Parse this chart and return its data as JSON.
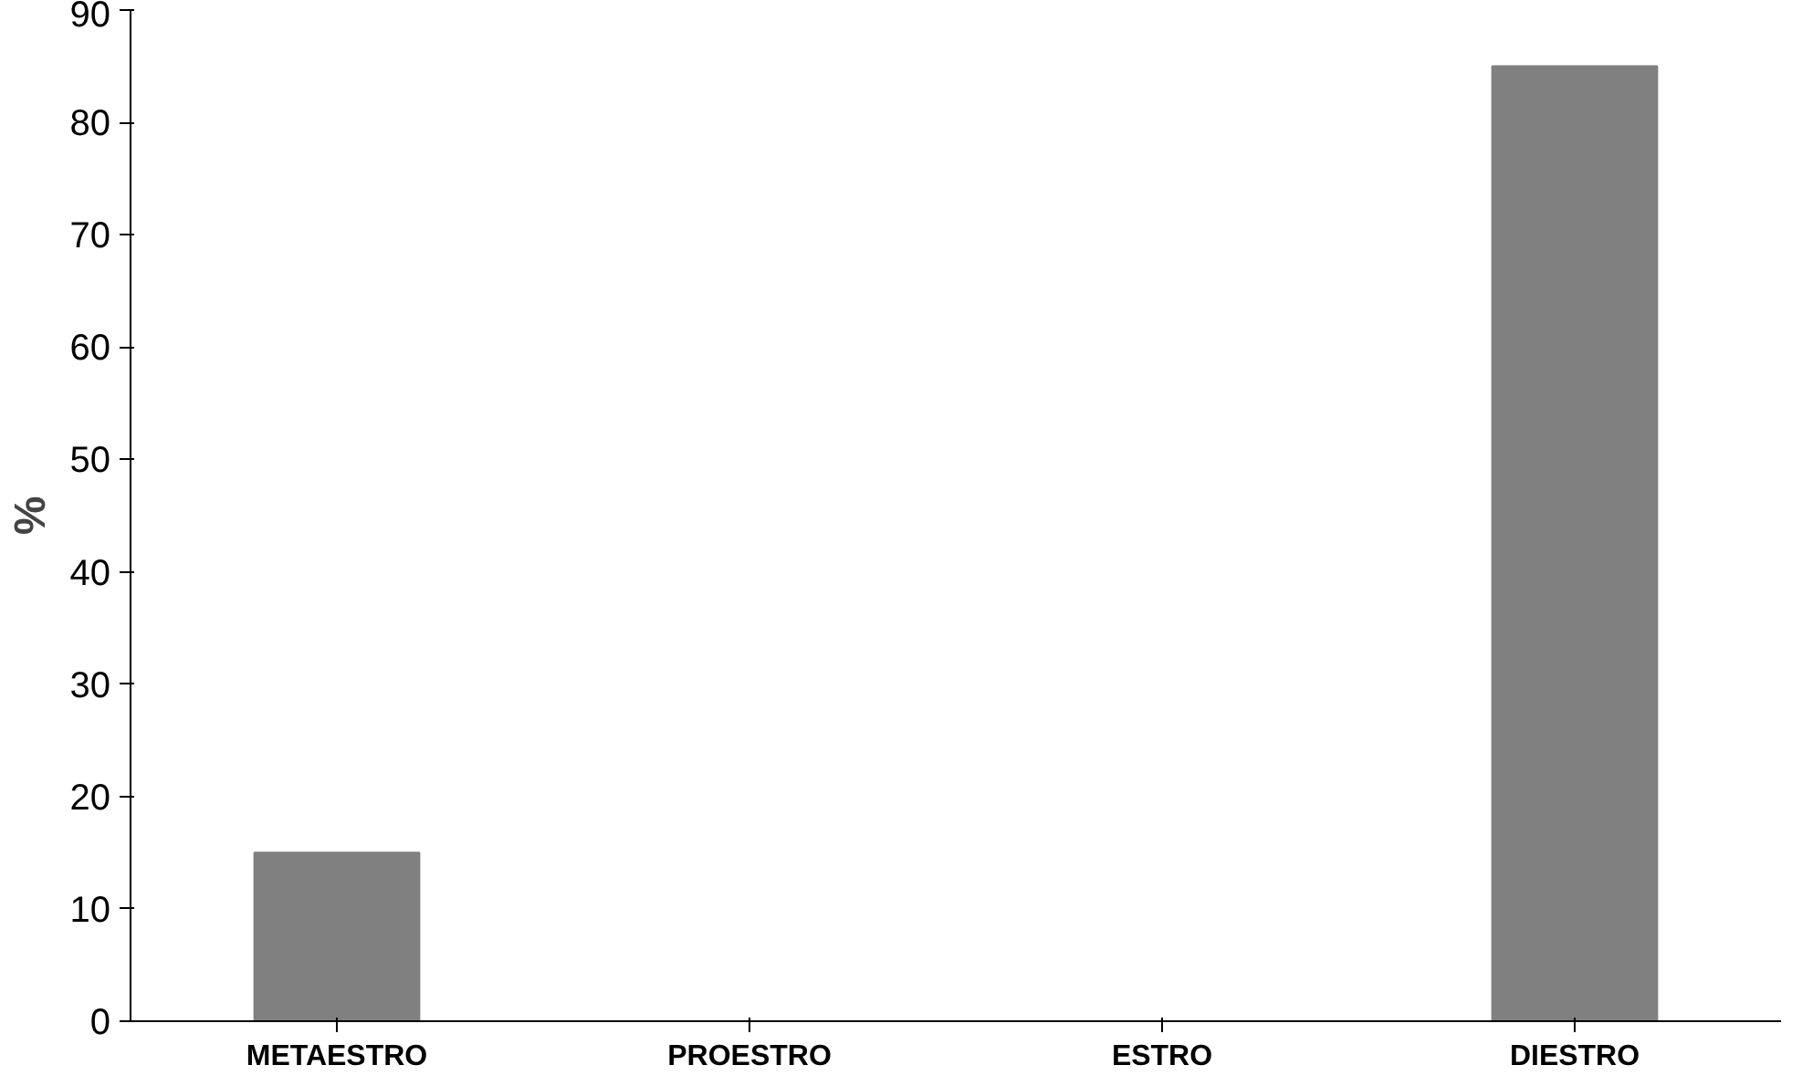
{
  "chart_data": {
    "type": "bar",
    "ylabel": "%",
    "categories": [
      "METAESTRO",
      "PROESTRO",
      "ESTRO",
      "DIESTRO"
    ],
    "values": [
      15,
      0,
      0,
      85
    ],
    "color": "#808080",
    "ylim": [
      0,
      90
    ],
    "yticks": [
      0,
      10,
      20,
      30,
      40,
      50,
      60,
      70,
      80,
      90
    ],
    "grid": false
  }
}
